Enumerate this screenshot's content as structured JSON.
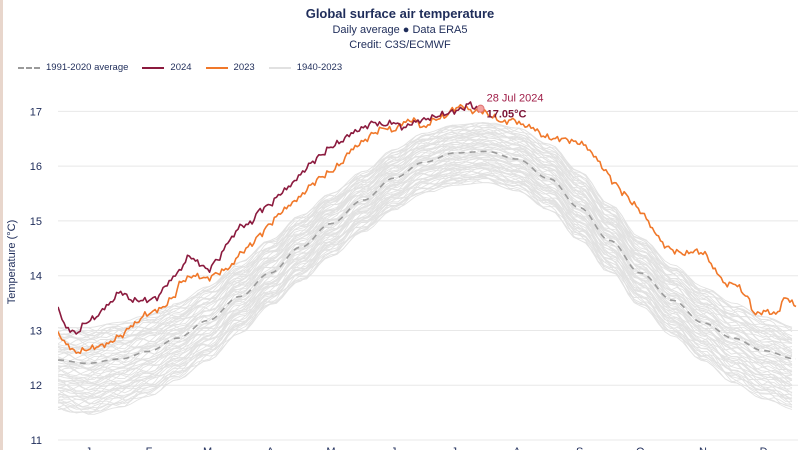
{
  "chart_data": {
    "type": "line",
    "title": "Global surface air temperature",
    "subtitle": "Daily average ● Data ERA5",
    "credit": "Credit: C3S/ECMWF",
    "xlabel": "",
    "ylabel": "Temperature (°C)",
    "ylim": [
      11,
      17.5
    ],
    "xlim": [
      1,
      366
    ],
    "yticks": [
      11,
      12,
      13,
      14,
      15,
      16,
      17
    ],
    "month_ticks": [
      "J",
      "F",
      "M",
      "A",
      "M",
      "J",
      "J",
      "A",
      "S",
      "O",
      "N",
      "D"
    ],
    "month_tick_days": [
      16,
      46,
      75,
      106,
      136,
      167,
      197,
      228,
      259,
      289,
      320,
      350
    ],
    "grid": true,
    "legend_position": "top-left",
    "colors": {
      "avg": "#9a9a9a",
      "y2024": "#8b1a3e",
      "y2023": "#f0782a",
      "historical": "#e1e1e1",
      "text": "#1f2d5a"
    },
    "annotation": {
      "date": "28 Jul 2024",
      "value_label": "17.05°C",
      "x": 210,
      "y": 17.05
    },
    "series": [
      {
        "name": "1991-2020 average",
        "style": "dashed",
        "x": [
          1,
          15,
          32,
          46,
          60,
          75,
          91,
          106,
          121,
          136,
          152,
          167,
          182,
          197,
          213,
          228,
          244,
          259,
          274,
          289,
          305,
          320,
          335,
          350,
          366
        ],
        "y": [
          12.46,
          12.4,
          12.48,
          12.62,
          12.86,
          13.18,
          13.62,
          14.05,
          14.52,
          14.95,
          15.38,
          15.78,
          16.07,
          16.24,
          16.27,
          16.13,
          15.77,
          15.24,
          14.64,
          14.05,
          13.55,
          13.14,
          12.86,
          12.63,
          12.48
        ]
      },
      {
        "name": "2024",
        "x": [
          1,
          5,
          10,
          15,
          20,
          25,
          32,
          38,
          45,
          50,
          55,
          60,
          66,
          72,
          75,
          80,
          86,
          91,
          96,
          101,
          106,
          111,
          116,
          121,
          126,
          131,
          136,
          141,
          146,
          152,
          157,
          162,
          167,
          172,
          177,
          182,
          187,
          192,
          197,
          201,
          205,
          207,
          210
        ],
        "y": [
          13.4,
          13.05,
          12.95,
          13.15,
          13.25,
          13.45,
          13.7,
          13.55,
          13.55,
          13.6,
          13.85,
          14.05,
          14.35,
          14.2,
          14.1,
          14.3,
          14.65,
          14.9,
          14.95,
          15.2,
          15.3,
          15.5,
          15.65,
          15.85,
          16.05,
          16.2,
          16.35,
          16.45,
          16.6,
          16.7,
          16.8,
          16.75,
          16.8,
          16.7,
          16.8,
          16.85,
          16.9,
          16.95,
          17.0,
          17.05,
          17.15,
          17.05,
          17.05
        ]
      },
      {
        "name": "2023",
        "x": [
          1,
          5,
          10,
          15,
          20,
          25,
          32,
          38,
          45,
          52,
          58,
          62,
          68,
          75,
          80,
          86,
          91,
          96,
          101,
          106,
          111,
          116,
          121,
          126,
          131,
          136,
          141,
          146,
          152,
          157,
          162,
          167,
          172,
          177,
          182,
          187,
          192,
          197,
          201,
          206,
          211,
          216,
          221,
          226,
          231,
          236,
          241,
          246,
          251,
          256,
          261,
          266,
          271,
          276,
          281,
          286,
          291,
          296,
          301,
          306,
          311,
          316,
          321,
          326,
          331,
          336,
          341,
          346,
          351,
          356,
          361,
          366
        ],
        "y": [
          12.95,
          12.75,
          12.6,
          12.65,
          12.7,
          12.75,
          12.9,
          13.1,
          13.3,
          13.4,
          13.6,
          13.9,
          14.0,
          13.95,
          14.05,
          14.15,
          14.4,
          14.55,
          14.75,
          14.95,
          15.15,
          15.3,
          15.45,
          15.65,
          15.8,
          15.9,
          16.05,
          16.3,
          16.45,
          16.6,
          16.7,
          16.65,
          16.8,
          16.85,
          16.7,
          16.85,
          16.9,
          17.05,
          17.1,
          17.0,
          17.0,
          16.9,
          16.8,
          16.85,
          16.75,
          16.7,
          16.55,
          16.5,
          16.5,
          16.45,
          16.4,
          16.2,
          15.95,
          15.7,
          15.5,
          15.3,
          15.1,
          14.8,
          14.55,
          14.45,
          14.4,
          14.45,
          14.4,
          14.1,
          13.85,
          13.85,
          13.65,
          13.3,
          13.35,
          13.3,
          13.6,
          13.45
        ]
      }
    ],
    "historical_band": {
      "name": "1940-2023",
      "x": [
        1,
        15,
        32,
        46,
        60,
        75,
        91,
        106,
        121,
        136,
        152,
        167,
        182,
        197,
        213,
        228,
        244,
        259,
        274,
        289,
        305,
        320,
        335,
        350,
        366
      ],
      "y_low": [
        11.55,
        11.45,
        11.6,
        11.8,
        12.1,
        12.45,
        12.95,
        13.45,
        13.9,
        14.35,
        14.8,
        15.2,
        15.5,
        15.65,
        15.7,
        15.55,
        15.2,
        14.65,
        14.05,
        13.45,
        12.9,
        12.45,
        12.05,
        11.75,
        11.55
      ],
      "y_high": [
        13.05,
        13.05,
        13.15,
        13.3,
        13.5,
        13.8,
        14.25,
        14.65,
        15.1,
        15.5,
        15.9,
        16.3,
        16.6,
        16.75,
        16.8,
        16.7,
        16.4,
        15.9,
        15.3,
        14.7,
        14.2,
        13.8,
        13.5,
        13.25,
        13.05
      ]
    }
  }
}
